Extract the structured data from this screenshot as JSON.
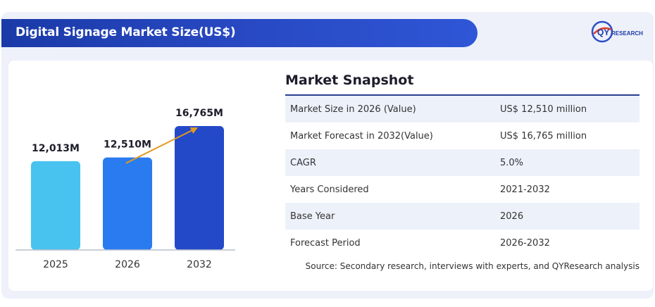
{
  "header": {
    "title": "Digital Signage Market Size(US$)",
    "logo_text": "QYRESEARCH"
  },
  "snapshot": {
    "title": "Market Snapshot",
    "rows": [
      {
        "label": "Market Size in 2026 (Value)",
        "value": "US$ 12,510 million"
      },
      {
        "label": "Market Forecast in 2032(Value)",
        "value": "US$ 16,765 million"
      },
      {
        "label": "CAGR",
        "value": "5.0%"
      },
      {
        "label": "Years Considered",
        "value": "2021-2032"
      },
      {
        "label": "Base Year",
        "value": "2026"
      },
      {
        "label": "Forecast Period",
        "value": "2026-2032"
      }
    ],
    "source": "Source: Secondary research, interviews with experts, and QYResearch analysis"
  },
  "colors": {
    "banner": "#1f3fb2",
    "bar_2025": "#48c3ef",
    "bar_2026": "#2a7bf0",
    "bar_2032": "#2449c8",
    "arrow": "#e39a1f"
  },
  "chart_data": {
    "type": "bar",
    "categories": [
      "2025",
      "2026",
      "2032"
    ],
    "values": [
      12013,
      12510,
      16765
    ],
    "value_labels": [
      "12,013M",
      "12,510M",
      "16,765M"
    ],
    "title": "",
    "xlabel": "",
    "ylabel": "",
    "ylim": [
      0,
      17500
    ],
    "grid": false,
    "annotation": "growth arrow from 2026 bar to 2032 bar"
  }
}
